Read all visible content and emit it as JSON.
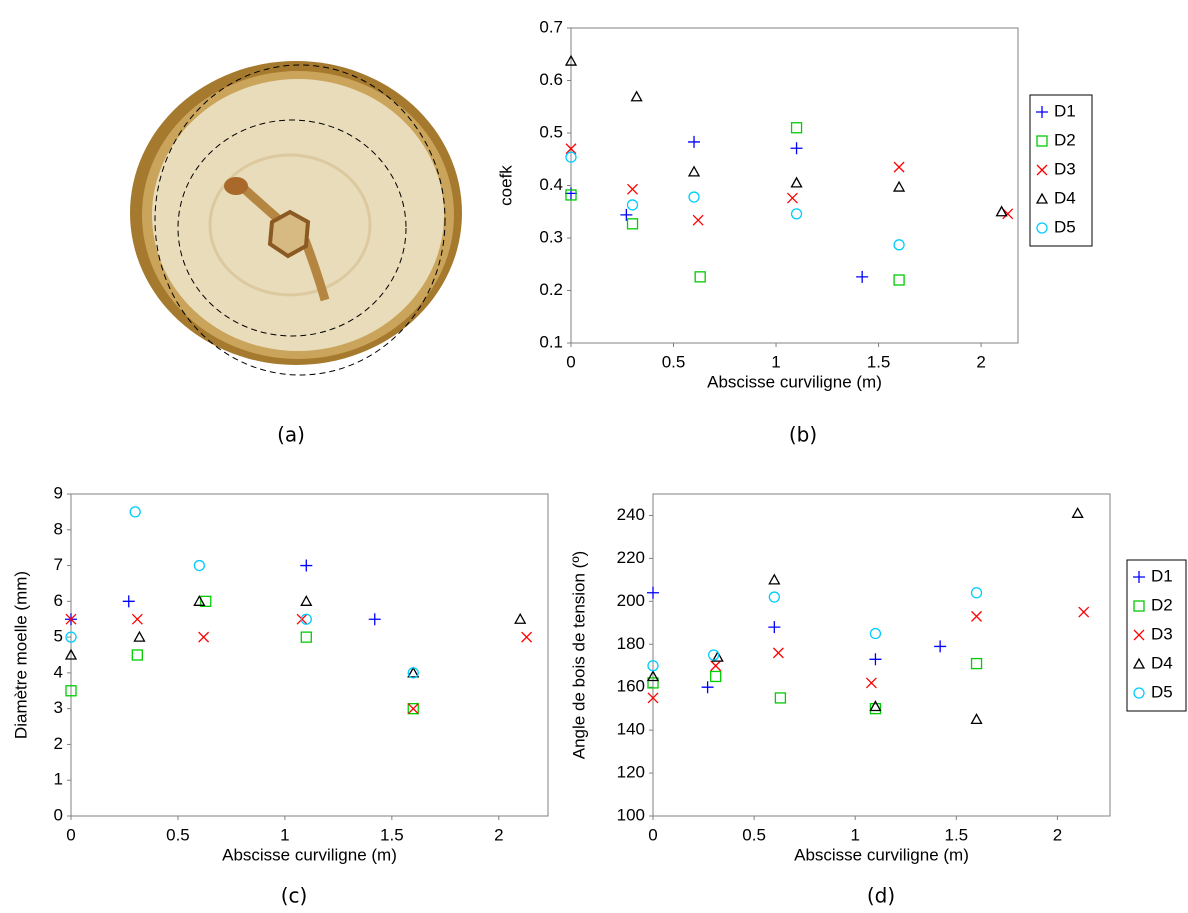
{
  "photo_caption": "(a)",
  "chart_data": [
    {
      "type": "scatter",
      "caption": "(b)",
      "x_label": "Abscisse curviligne (m)",
      "y_label": "coefk",
      "xlim": [
        0,
        2.18
      ],
      "xticks": [
        0,
        0.5,
        1,
        1.5,
        2
      ],
      "ylim": [
        0.1,
        0.7
      ],
      "yticks": [
        0.1,
        0.2,
        0.3,
        0.4,
        0.5,
        0.6,
        0.7
      ],
      "legend": "right",
      "series": [
        {
          "name": "D1",
          "color": "#0000ff",
          "marker": "plus",
          "x": [
            0,
            0.27,
            0.6,
            1.1,
            1.42
          ],
          "values": [
            0.385,
            0.344,
            0.483,
            0.471,
            0.226
          ]
        },
        {
          "name": "D2",
          "color": "#00cc00",
          "marker": "square",
          "x": [
            0,
            0.3,
            0.63,
            1.1,
            1.6
          ],
          "values": [
            0.382,
            0.327,
            0.226,
            0.51,
            0.22
          ]
        },
        {
          "name": "D3",
          "color": "#ff0000",
          "marker": "cross",
          "x": [
            0,
            0.3,
            0.62,
            1.08,
            1.6,
            2.13
          ],
          "values": [
            0.47,
            0.393,
            0.334,
            0.376,
            0.435,
            0.346
          ]
        },
        {
          "name": "D4",
          "color": "#000000",
          "marker": "triangle",
          "x": [
            0,
            0.32,
            0.6,
            1.1,
            1.6,
            2.1
          ],
          "values": [
            0.637,
            0.569,
            0.426,
            0.405,
            0.397,
            0.35
          ]
        },
        {
          "name": "D5",
          "color": "#00ccff",
          "marker": "circle",
          "x": [
            0,
            0.3,
            0.6,
            1.1,
            1.6
          ],
          "values": [
            0.454,
            0.363,
            0.378,
            0.346,
            0.287
          ]
        }
      ]
    },
    {
      "type": "scatter",
      "caption": "(c)",
      "x_label": "Abscisse curviligne (m)",
      "y_label": "Diamètre moelle (mm)",
      "xlim": [
        0,
        2.23
      ],
      "xticks": [
        0,
        0.5,
        1,
        1.5,
        2
      ],
      "ylim": [
        0,
        9
      ],
      "yticks": [
        0,
        1,
        2,
        3,
        4,
        5,
        6,
        7,
        8,
        9
      ],
      "series": [
        {
          "color": "#0000ff",
          "marker": "plus",
          "x": [
            0,
            0.27,
            1.1,
            1.42
          ],
          "values": [
            5.5,
            6,
            7,
            5.5
          ]
        },
        {
          "color": "#00cc00",
          "marker": "square",
          "x": [
            0,
            0.31,
            0.63,
            1.1,
            1.6
          ],
          "values": [
            3.5,
            4.5,
            6,
            5,
            3
          ]
        },
        {
          "color": "#ff0000",
          "marker": "cross",
          "x": [
            0,
            0.31,
            0.62,
            1.08,
            1.6,
            2.13
          ],
          "values": [
            5.5,
            5.5,
            5,
            5.5,
            3,
            5
          ]
        },
        {
          "color": "#000000",
          "marker": "triangle",
          "x": [
            0,
            0.32,
            0.6,
            1.1,
            1.6,
            2.1
          ],
          "values": [
            4.5,
            5,
            6,
            6,
            4,
            5.5
          ]
        },
        {
          "color": "#00ccff",
          "marker": "circle",
          "x": [
            0,
            0.3,
            0.6,
            1.1,
            1.6
          ],
          "values": [
            5,
            8.5,
            7,
            5.5,
            4
          ]
        }
      ]
    },
    {
      "type": "scatter",
      "caption": "(d)",
      "x_label": "Abscisse curviligne (m)",
      "y_label": "Angle de bois de tension (º)",
      "xlim": [
        0,
        2.26
      ],
      "xticks": [
        0,
        0.5,
        1,
        1.5,
        2
      ],
      "ylim": [
        100,
        250
      ],
      "yticks": [
        100,
        120,
        140,
        160,
        180,
        200,
        220,
        240
      ],
      "legend": "right",
      "series": [
        {
          "name": "D1",
          "color": "#0000ff",
          "marker": "plus",
          "x": [
            0,
            0.27,
            0.6,
            1.1,
            1.42
          ],
          "values": [
            204,
            160,
            188,
            173,
            179
          ]
        },
        {
          "name": "D2",
          "color": "#00cc00",
          "marker": "square",
          "x": [
            0,
            0.31,
            0.63,
            1.1,
            1.6
          ],
          "values": [
            162,
            165,
            155,
            150,
            171
          ]
        },
        {
          "name": "D3",
          "color": "#ff0000",
          "marker": "cross",
          "x": [
            0,
            0.31,
            0.62,
            1.08,
            1.6,
            2.13
          ],
          "values": [
            155,
            170,
            176,
            162,
            193,
            195
          ]
        },
        {
          "name": "D4",
          "color": "#000000",
          "marker": "triangle",
          "x": [
            0,
            0.32,
            0.6,
            1.1,
            1.6,
            2.1
          ],
          "values": [
            165,
            174,
            210,
            151,
            145,
            241
          ]
        },
        {
          "name": "D5",
          "color": "#00ccff",
          "marker": "circle",
          "x": [
            0,
            0.3,
            0.6,
            1.1,
            1.6
          ],
          "values": [
            170,
            175,
            202,
            185,
            204
          ]
        }
      ]
    }
  ]
}
